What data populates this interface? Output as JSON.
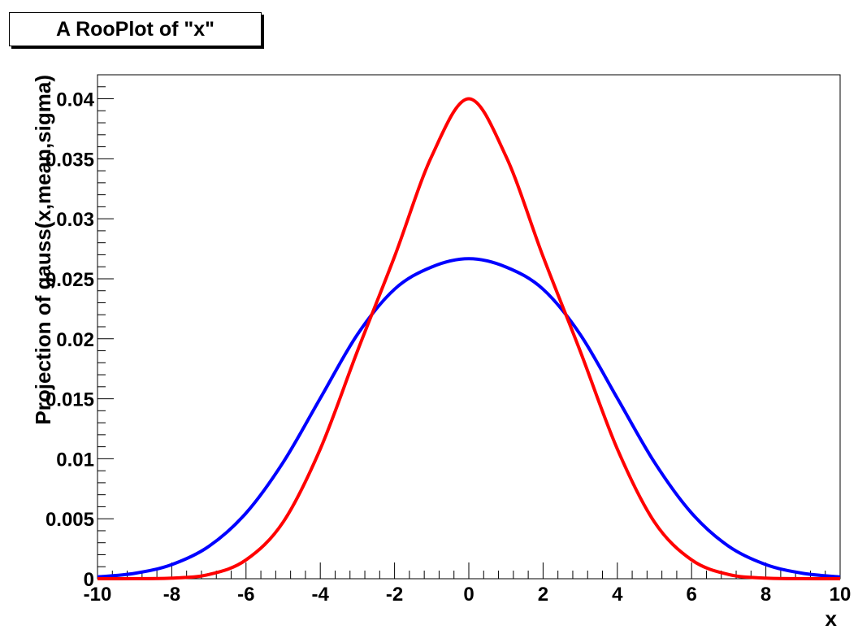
{
  "chart_data": {
    "type": "line",
    "title": "A RooPlot of \"x\"",
    "xlabel": "x",
    "ylabel": "Projection of gauss(x,mean,sigma)",
    "xlim": [
      -10,
      10
    ],
    "ylim": [
      0,
      0.042
    ],
    "x_ticks": [
      -10,
      -8,
      -6,
      -4,
      -2,
      0,
      2,
      4,
      6,
      8,
      10
    ],
    "y_ticks": [
      0,
      0.005,
      0.01,
      0.015,
      0.02,
      0.025,
      0.03,
      0.035,
      0.04
    ],
    "y_tick_labels": [
      "0",
      "0.005",
      "0.01",
      "0.015",
      "0.02",
      "0.025",
      "0.03",
      "0.035",
      "0.04"
    ],
    "grid": false,
    "series": [
      {
        "color": "#0000ff",
        "x": [
          -10,
          -9,
          -8,
          -7,
          -6,
          -5,
          -4,
          -3,
          -2,
          -1,
          0,
          1,
          2,
          3,
          4,
          5,
          6,
          7,
          8,
          9,
          10
        ],
        "values": [
          0.00015,
          0.00045,
          0.00118,
          0.0027,
          0.00547,
          0.0097,
          0.01504,
          0.02036,
          0.02413,
          0.02598,
          0.02667,
          0.02598,
          0.02413,
          0.02036,
          0.01504,
          0.0097,
          0.00547,
          0.0027,
          0.00118,
          0.00045,
          0.00015
        ]
      },
      {
        "color": "#ff0000",
        "x": [
          -10,
          -9,
          -8,
          -7,
          -6,
          -5,
          -4,
          -3,
          -2,
          -1,
          0,
          1,
          2,
          3,
          4,
          5,
          6,
          7,
          8,
          9,
          10
        ],
        "values": [
          0.0,
          1e-05,
          5e-05,
          0.00035,
          0.00157,
          0.00472,
          0.01081,
          0.01897,
          0.02685,
          0.03521,
          0.04,
          0.03521,
          0.02685,
          0.01897,
          0.01081,
          0.00472,
          0.00157,
          0.00035,
          5e-05,
          1e-05,
          0.0
        ]
      }
    ]
  }
}
